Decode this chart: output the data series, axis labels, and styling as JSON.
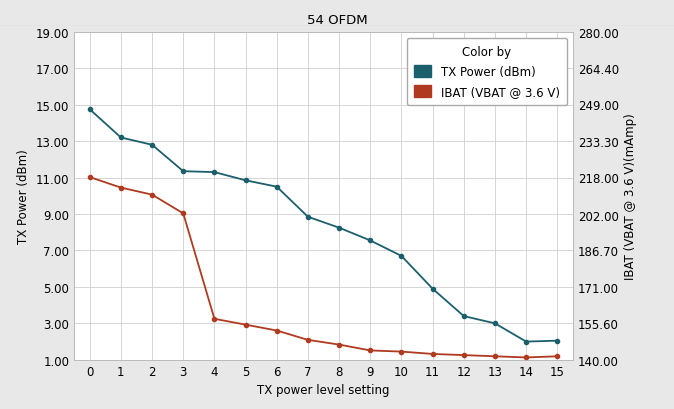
{
  "title": "54 OFDM",
  "xlabel": "TX power level setting",
  "ylabel_left": "TX Power (dBm)",
  "ylabel_right": "IBAT (VBAT @ 3.6 V)(mAmp)",
  "x": [
    0,
    1,
    2,
    3,
    4,
    5,
    6,
    7,
    8,
    9,
    10,
    11,
    12,
    13,
    14,
    15
  ],
  "tx_power": [
    14.75,
    13.2,
    12.8,
    11.35,
    11.3,
    10.85,
    10.5,
    8.85,
    8.25,
    7.55,
    6.7,
    4.9,
    3.4,
    3.0,
    2.0,
    2.05
  ],
  "ibat": [
    218.0,
    213.5,
    210.5,
    202.5,
    157.5,
    155.0,
    152.5,
    148.5,
    146.5,
    144.0,
    143.5,
    142.5,
    142.0,
    141.5,
    141.0,
    141.5
  ],
  "tx_power_color": "#1b5f6d",
  "ibat_color": "#b03a20",
  "legend_title": "Color by",
  "legend_tx": "TX Power (dBm)",
  "legend_ibat": "IBAT (VBAT @ 3.6 V)",
  "ylim_left": [
    1.0,
    19.0
  ],
  "ylim_right": [
    140.0,
    280.0
  ],
  "yticks_left": [
    1.0,
    3.0,
    5.0,
    7.0,
    9.0,
    11.0,
    13.0,
    15.0,
    17.0,
    19.0
  ],
  "ytick_left_labels": [
    "1.00",
    "3.00",
    "5.00",
    "7.00",
    "9.00",
    "11.00",
    "13.00",
    "15.00",
    "17.00",
    "19.00"
  ],
  "yticks_right": [
    140.0,
    155.6,
    171.0,
    186.7,
    202.0,
    218.0,
    233.3,
    249.0,
    264.4,
    280.0
  ],
  "ytick_right_labels": [
    "140.00",
    "155.60",
    "171.00",
    "186.70",
    "202.00",
    "218.00",
    "233.30",
    "249.00",
    "264.40",
    "280.00"
  ],
  "fig_bg_color": "#e8e8e8",
  "plot_bg_color": "#ffffff",
  "title_bg_color": "#e0e0e0",
  "grid_color": "#d0d0d0",
  "marker": "o",
  "marker_size": 3,
  "line_width": 1.3,
  "font_size": 8.5
}
